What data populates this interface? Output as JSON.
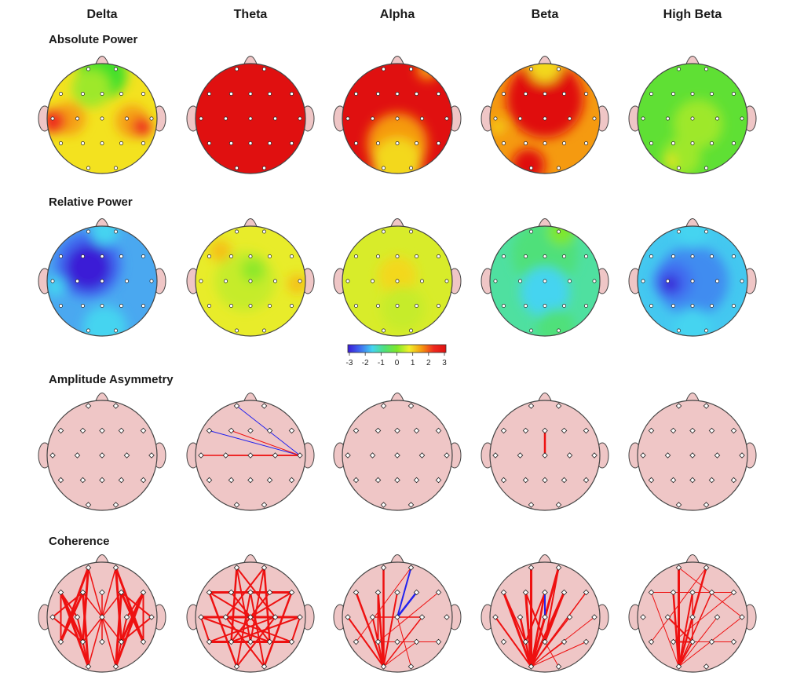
{
  "bands": [
    {
      "id": "delta",
      "label": "Delta"
    },
    {
      "id": "theta",
      "label": "Theta"
    },
    {
      "id": "alpha",
      "label": "Alpha"
    },
    {
      "id": "beta",
      "label": "Beta"
    },
    {
      "id": "high-beta",
      "label": "High Beta"
    }
  ],
  "rows": [
    {
      "id": "absolute-power",
      "label": "Absolute Power",
      "kind": "topomap"
    },
    {
      "id": "relative-power",
      "label": "Relative Power",
      "kind": "topomap"
    },
    {
      "id": "amplitude-asymmetry",
      "label": "Amplitude Asymmetry",
      "kind": "connectivity"
    },
    {
      "id": "coherence",
      "label": "Coherence",
      "kind": "connectivity"
    }
  ],
  "colorbar": {
    "ticks": [
      "-3",
      "-2",
      "-1",
      "0",
      "1",
      "2",
      "3"
    ],
    "stops": [
      "#3a1ad6",
      "#3f6cf0",
      "#44d4f0",
      "#4fe07a",
      "#7ee82a",
      "#f0f02a",
      "#f59a10",
      "#ee2a1e",
      "#e01010"
    ]
  },
  "colors": {
    "head_fill": "#efc6c6",
    "head_stroke": "#444444",
    "electrode_fill": "#ffffff",
    "line_red": "#ee1111",
    "line_blue": "#2222ee"
  },
  "topomaps": {
    "absolute-power": {
      "delta": {
        "base": "#f3e21f",
        "blobs": [
          {
            "c": "#3fe02a",
            "dx": 0,
            "dy": -0.8,
            "r": 0.45
          },
          {
            "c": "#9ee82a",
            "dx": -0.2,
            "dy": -0.55,
            "r": 0.35
          },
          {
            "c": "#f5a018",
            "dx": -0.6,
            "dy": 0,
            "r": 0.3
          },
          {
            "c": "#ee2a1e",
            "dx": -0.88,
            "dy": 0.05,
            "r": 0.22
          },
          {
            "c": "#f5a018",
            "dx": 0.55,
            "dy": 0.05,
            "r": 0.3
          },
          {
            "c": "#ee2a1e",
            "dx": 0.72,
            "dy": 0.15,
            "r": 0.18
          }
        ]
      },
      "theta": {
        "base": "#e01010",
        "blobs": []
      },
      "alpha": {
        "base": "#e01010",
        "blobs": [
          {
            "c": "#f59a10",
            "dx": 0,
            "dy": 0.45,
            "r": 0.55
          },
          {
            "c": "#f3d81f",
            "dx": 0,
            "dy": 0.8,
            "r": 0.45
          },
          {
            "c": "#f59a10",
            "dx": 0.55,
            "dy": -0.9,
            "r": 0.2
          }
        ]
      },
      "beta": {
        "base": "#f59a10",
        "blobs": [
          {
            "c": "#e01010",
            "dx": 0,
            "dy": -0.35,
            "r": 0.7
          },
          {
            "c": "#f3d81f",
            "dx": 0,
            "dy": -0.95,
            "r": 0.3
          },
          {
            "c": "#f3d81f",
            "dx": -0.85,
            "dy": 0.15,
            "r": 0.12
          },
          {
            "c": "#e01010",
            "dx": -0.3,
            "dy": 0.85,
            "r": 0.3
          }
        ]
      },
      "high-beta": {
        "base": "#5fe034",
        "blobs": [
          {
            "c": "#9ee82a",
            "dx": 0.1,
            "dy": 0.1,
            "r": 0.45
          },
          {
            "c": "#9ee82a",
            "dx": -0.2,
            "dy": 0.7,
            "r": 0.35
          },
          {
            "c": "#f3e21f",
            "dx": -0.4,
            "dy": 0.78,
            "r": 0.1
          }
        ]
      }
    },
    "relative-power": {
      "delta": {
        "base": "#4aa8f0",
        "blobs": [
          {
            "c": "#3f6cf0",
            "dx": -0.25,
            "dy": -0.3,
            "r": 0.6
          },
          {
            "c": "#3a1ad6",
            "dx": -0.25,
            "dy": -0.25,
            "r": 0.42
          },
          {
            "c": "#44d4f0",
            "dx": 0.05,
            "dy": 0.85,
            "r": 0.4
          },
          {
            "c": "#44d4f0",
            "dx": -0.85,
            "dy": 0.1,
            "r": 0.18
          },
          {
            "c": "#44d4f0",
            "dx": 0.05,
            "dy": -0.9,
            "r": 0.25
          }
        ]
      },
      "theta": {
        "base": "#e8ec2a",
        "blobs": [
          {
            "c": "#c6ec2a",
            "dx": -0.1,
            "dy": 0,
            "r": 0.55
          },
          {
            "c": "#8ee82a",
            "dx": 0.05,
            "dy": -0.2,
            "r": 0.22
          },
          {
            "c": "#f5c018",
            "dx": 0.85,
            "dy": 0.05,
            "r": 0.18
          },
          {
            "c": "#f5c018",
            "dx": -0.55,
            "dy": -0.55,
            "r": 0.2
          }
        ]
      },
      "alpha": {
        "base": "#d8ec2a",
        "blobs": [
          {
            "c": "#f3d81f",
            "dx": 0,
            "dy": -0.1,
            "r": 0.35
          },
          {
            "c": "#c6ec2a",
            "dx": 0.1,
            "dy": 0.5,
            "r": 0.4
          }
        ]
      },
      "beta": {
        "base": "#4fe0a0",
        "blobs": [
          {
            "c": "#4fe07a",
            "dx": 0,
            "dy": -0.5,
            "r": 0.6
          },
          {
            "c": "#7ee82a",
            "dx": 0.3,
            "dy": -0.9,
            "r": 0.25
          },
          {
            "c": "#44d4f0",
            "dx": 0,
            "dy": 0.2,
            "r": 0.45
          },
          {
            "c": "#4fe07a",
            "dx": 0.2,
            "dy": 0.85,
            "r": 0.35
          }
        ]
      },
      "high-beta": {
        "base": "#44c8f0",
        "blobs": [
          {
            "c": "#3f8cf0",
            "dx": 0,
            "dy": 0,
            "r": 0.65
          },
          {
            "c": "#3f6cf0",
            "dx": -0.35,
            "dy": 0.0,
            "r": 0.35
          },
          {
            "c": "#3a1ad6",
            "dx": -0.4,
            "dy": 0.05,
            "r": 0.16
          },
          {
            "c": "#44d4f0",
            "dx": 0,
            "dy": -0.9,
            "r": 0.3
          },
          {
            "c": "#44d4f0",
            "dx": 0,
            "dy": 0.85,
            "r": 0.35
          }
        ]
      }
    }
  },
  "connectivity": {
    "amplitude-asymmetry": {
      "delta": [],
      "theta": [
        {
          "a": "Fp1",
          "b": "T4",
          "c": "blue",
          "w": 1
        },
        {
          "a": "F7",
          "b": "T4",
          "c": "blue",
          "w": 1
        },
        {
          "a": "F3",
          "b": "T4",
          "c": "red",
          "w": 1
        },
        {
          "a": "T3",
          "b": "T4",
          "c": "red",
          "w": 1.5
        },
        {
          "a": "C3",
          "b": "T4",
          "c": "red",
          "w": 1.5
        },
        {
          "a": "Cz",
          "b": "T4",
          "c": "red",
          "w": 1.2
        }
      ],
      "alpha": [],
      "beta": [
        {
          "a": "Fz",
          "b": "Cz",
          "c": "red",
          "w": 2.5
        }
      ],
      "high-beta": []
    },
    "coherence": {
      "delta": [
        {
          "a": "F7",
          "b": "P3",
          "c": "red",
          "w": 3
        },
        {
          "a": "F7",
          "b": "O1",
          "c": "red",
          "w": 3
        },
        {
          "a": "Fp1",
          "b": "P3",
          "c": "red",
          "w": 3
        },
        {
          "a": "Fp1",
          "b": "T5",
          "c": "red",
          "w": 3
        },
        {
          "a": "F3",
          "b": "O1",
          "c": "red",
          "w": 3
        },
        {
          "a": "F3",
          "b": "T5",
          "c": "red",
          "w": 3
        },
        {
          "a": "Fp2",
          "b": "P4",
          "c": "red",
          "w": 3
        },
        {
          "a": "Fp2",
          "b": "T6",
          "c": "red",
          "w": 3
        },
        {
          "a": "F4",
          "b": "O2",
          "c": "red",
          "w": 3
        },
        {
          "a": "F8",
          "b": "P4",
          "c": "red",
          "w": 3
        },
        {
          "a": "F8",
          "b": "O2",
          "c": "red",
          "w": 3
        },
        {
          "a": "F4",
          "b": "T6",
          "c": "red",
          "w": 3
        },
        {
          "a": "T3",
          "b": "P3",
          "c": "red",
          "w": 2
        },
        {
          "a": "T3",
          "b": "F3",
          "c": "red",
          "w": 2
        },
        {
          "a": "T4",
          "b": "P4",
          "c": "red",
          "w": 2
        },
        {
          "a": "T4",
          "b": "F4",
          "c": "red",
          "w": 2
        },
        {
          "a": "F7",
          "b": "C3",
          "c": "red",
          "w": 2
        },
        {
          "a": "F8",
          "b": "C4",
          "c": "red",
          "w": 2
        },
        {
          "a": "Fp1",
          "b": "O2",
          "c": "red",
          "w": 1.5
        },
        {
          "a": "Fp2",
          "b": "O1",
          "c": "red",
          "w": 1.5
        },
        {
          "a": "F3",
          "b": "P4",
          "c": "red",
          "w": 1.5
        },
        {
          "a": "F4",
          "b": "P3",
          "c": "red",
          "w": 1.5
        },
        {
          "a": "C3",
          "b": "O1",
          "c": "red",
          "w": 2
        },
        {
          "a": "C4",
          "b": "O2",
          "c": "red",
          "w": 2
        },
        {
          "a": "T5",
          "b": "F3",
          "c": "red",
          "w": 2
        },
        {
          "a": "T6",
          "b": "F4",
          "c": "red",
          "w": 2
        },
        {
          "a": "Fz",
          "b": "Pz",
          "c": "red",
          "w": 1.5
        },
        {
          "a": "F7",
          "b": "T5",
          "c": "red",
          "w": 2
        },
        {
          "a": "F8",
          "b": "T6",
          "c": "red",
          "w": 2
        }
      ],
      "theta": [
        {
          "a": "F7",
          "b": "F3",
          "c": "red",
          "w": 3
        },
        {
          "a": "F3",
          "b": "Fz",
          "c": "red",
          "w": 3
        },
        {
          "a": "Fz",
          "b": "F4",
          "c": "red",
          "w": 3
        },
        {
          "a": "F4",
          "b": "F8",
          "c": "red",
          "w": 3
        },
        {
          "a": "T3",
          "b": "C3",
          "c": "red",
          "w": 3
        },
        {
          "a": "C3",
          "b": "Cz",
          "c": "red",
          "w": 3
        },
        {
          "a": "Cz",
          "b": "C4",
          "c": "red",
          "w": 3
        },
        {
          "a": "C4",
          "b": "T4",
          "c": "red",
          "w": 3
        },
        {
          "a": "T5",
          "b": "P3",
          "c": "red",
          "w": 3
        },
        {
          "a": "P3",
          "b": "Pz",
          "c": "red",
          "w": 3
        },
        {
          "a": "Pz",
          "b": "P4",
          "c": "red",
          "w": 3
        },
        {
          "a": "P4",
          "b": "T6",
          "c": "red",
          "w": 3
        },
        {
          "a": "Fp1",
          "b": "P3",
          "c": "red",
          "w": 2.5
        },
        {
          "a": "Fp2",
          "b": "P4",
          "c": "red",
          "w": 2.5
        },
        {
          "a": "F7",
          "b": "O1",
          "c": "red",
          "w": 2.5
        },
        {
          "a": "F8",
          "b": "O2",
          "c": "red",
          "w": 2.5
        },
        {
          "a": "F3",
          "b": "P4",
          "c": "red",
          "w": 2
        },
        {
          "a": "F4",
          "b": "P3",
          "c": "red",
          "w": 2
        },
        {
          "a": "C3",
          "b": "O2",
          "c": "red",
          "w": 2
        },
        {
          "a": "C4",
          "b": "O1",
          "c": "red",
          "w": 2
        },
        {
          "a": "Fp1",
          "b": "C4",
          "c": "red",
          "w": 2
        },
        {
          "a": "Fp2",
          "b": "C3",
          "c": "red",
          "w": 2
        },
        {
          "a": "T3",
          "b": "P4",
          "c": "red",
          "w": 2
        },
        {
          "a": "T4",
          "b": "P3",
          "c": "red",
          "w": 2
        },
        {
          "a": "F7",
          "b": "Cz",
          "c": "red",
          "w": 2
        },
        {
          "a": "F8",
          "b": "Cz",
          "c": "red",
          "w": 2
        },
        {
          "a": "Fz",
          "b": "O1",
          "c": "red",
          "w": 2
        },
        {
          "a": "Fz",
          "b": "O2",
          "c": "red",
          "w": 2
        },
        {
          "a": "T5",
          "b": "C4",
          "c": "red",
          "w": 2
        },
        {
          "a": "T6",
          "b": "C3",
          "c": "red",
          "w": 2
        },
        {
          "a": "Fp1",
          "b": "Pz",
          "c": "red",
          "w": 2
        },
        {
          "a": "Fp2",
          "b": "Pz",
          "c": "red",
          "w": 2
        },
        {
          "a": "T3",
          "b": "T5",
          "c": "red",
          "w": 2
        },
        {
          "a": "T4",
          "b": "T6",
          "c": "red",
          "w": 2
        }
      ],
      "alpha": [
        {
          "a": "Fp1",
          "b": "O1",
          "c": "red",
          "w": 2.5
        },
        {
          "a": "F7",
          "b": "O1",
          "c": "red",
          "w": 2.5
        },
        {
          "a": "F3",
          "b": "O1",
          "c": "red",
          "w": 2.5
        },
        {
          "a": "T3",
          "b": "O1",
          "c": "red",
          "w": 2
        },
        {
          "a": "C3",
          "b": "O1",
          "c": "red",
          "w": 2
        },
        {
          "a": "F3",
          "b": "P3",
          "c": "red",
          "w": 2
        },
        {
          "a": "C3",
          "b": "C4",
          "c": "red",
          "w": 1.5
        },
        {
          "a": "Fp2",
          "b": "Cz",
          "c": "blue",
          "w": 2
        },
        {
          "a": "F4",
          "b": "Cz",
          "c": "blue",
          "w": 2.5
        },
        {
          "a": "Fz",
          "b": "O1",
          "c": "red",
          "w": 2
        },
        {
          "a": "C4",
          "b": "O1",
          "c": "red",
          "w": 1.5
        },
        {
          "a": "Cz",
          "b": "O2",
          "c": "red",
          "w": 1
        },
        {
          "a": "Fp2",
          "b": "T5",
          "c": "red",
          "w": 1
        },
        {
          "a": "F8",
          "b": "P3",
          "c": "red",
          "w": 1
        },
        {
          "a": "P4",
          "b": "O1",
          "c": "red",
          "w": 1
        },
        {
          "a": "T6",
          "b": "P3",
          "c": "red",
          "w": 1
        }
      ],
      "beta": [
        {
          "a": "Fp1",
          "b": "O1",
          "c": "red",
          "w": 3
        },
        {
          "a": "F7",
          "b": "O1",
          "c": "red",
          "w": 3
        },
        {
          "a": "F3",
          "b": "O1",
          "c": "red",
          "w": 3
        },
        {
          "a": "Fp2",
          "b": "O1",
          "c": "red",
          "w": 3
        },
        {
          "a": "F4",
          "b": "O1",
          "c": "red",
          "w": 3
        },
        {
          "a": "F4",
          "b": "Pz",
          "c": "red",
          "w": 2.5
        },
        {
          "a": "C3",
          "b": "O1",
          "c": "red",
          "w": 2.5
        },
        {
          "a": "T3",
          "b": "O1",
          "c": "red",
          "w": 2
        },
        {
          "a": "Fz",
          "b": "O1",
          "c": "red",
          "w": 2.5
        },
        {
          "a": "Fz",
          "b": "P3",
          "c": "red",
          "w": 2
        },
        {
          "a": "Fp2",
          "b": "Pz",
          "c": "red",
          "w": 2
        },
        {
          "a": "F8",
          "b": "O1",
          "c": "red",
          "w": 1.5
        },
        {
          "a": "Fz",
          "b": "Cz",
          "c": "blue",
          "w": 2
        },
        {
          "a": "C4",
          "b": "O1",
          "c": "red",
          "w": 1.5
        },
        {
          "a": "T4",
          "b": "O1",
          "c": "red",
          "w": 1
        },
        {
          "a": "P4",
          "b": "O1",
          "c": "red",
          "w": 1
        },
        {
          "a": "T6",
          "b": "O1",
          "c": "red",
          "w": 1
        },
        {
          "a": "O2",
          "b": "Pz",
          "c": "red",
          "w": 1
        },
        {
          "a": "F3",
          "b": "Pz",
          "c": "red",
          "w": 2
        },
        {
          "a": "F7",
          "b": "P3",
          "c": "red",
          "w": 2
        }
      ],
      "high-beta": [
        {
          "a": "Fp1",
          "b": "O1",
          "c": "red",
          "w": 3
        },
        {
          "a": "F3",
          "b": "O1",
          "c": "red",
          "w": 2.5
        },
        {
          "a": "Fz",
          "b": "O1",
          "c": "red",
          "w": 2
        },
        {
          "a": "Fp2",
          "b": "O1",
          "c": "red",
          "w": 2.5
        },
        {
          "a": "F4",
          "b": "O1",
          "c": "red",
          "w": 1.5
        },
        {
          "a": "F7",
          "b": "O1",
          "c": "red",
          "w": 1
        },
        {
          "a": "C3",
          "b": "Pz",
          "c": "red",
          "w": 2
        },
        {
          "a": "Fp1",
          "b": "T4",
          "c": "red",
          "w": 1
        },
        {
          "a": "Fp2",
          "b": "T5",
          "c": "red",
          "w": 1
        },
        {
          "a": "F8",
          "b": "P3",
          "c": "red",
          "w": 1
        },
        {
          "a": "F7",
          "b": "F8",
          "c": "red",
          "w": 1
        },
        {
          "a": "T4",
          "b": "O1",
          "c": "red",
          "w": 1
        },
        {
          "a": "P3",
          "b": "Pz",
          "c": "red",
          "w": 2
        },
        {
          "a": "Pz",
          "b": "O1",
          "c": "red",
          "w": 2
        },
        {
          "a": "C4",
          "b": "O1",
          "c": "red",
          "w": 1
        },
        {
          "a": "T6",
          "b": "P3",
          "c": "red",
          "w": 1
        },
        {
          "a": "Fz",
          "b": "Pz",
          "c": "red",
          "w": 1.5
        }
      ]
    }
  }
}
